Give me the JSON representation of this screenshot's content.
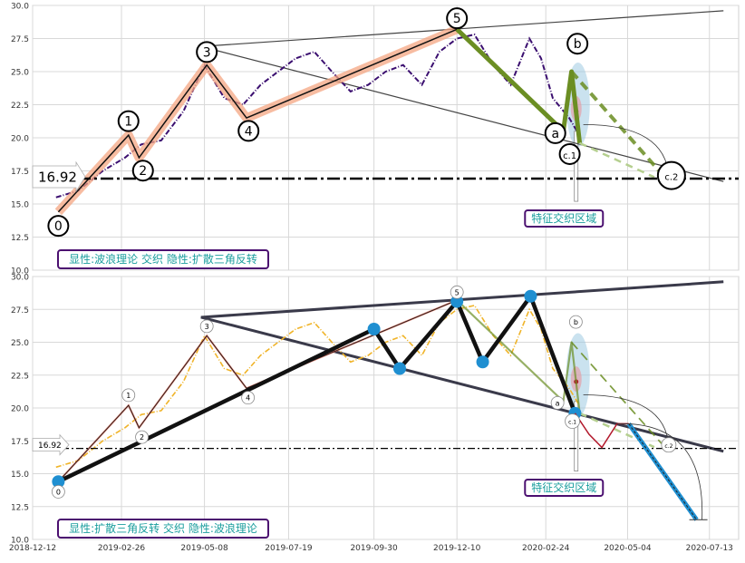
{
  "chart_data": [
    {
      "type": "line",
      "panel": "top",
      "annotation_text": "显性:波浪理论 交织 隐性:扩散三角反转",
      "zone_label": "特征交织区域",
      "ylim": [
        10.0,
        30.0
      ],
      "y_ticks": [
        "10.0",
        "12.5",
        "15.0",
        "17.5",
        "20.0",
        "22.5",
        "25.0",
        "27.5",
        "30.0"
      ],
      "hline": {
        "value": 16.92,
        "label": "16.92"
      },
      "price_series": {
        "color": "#3b0f70",
        "x": [
          "2019-01-01",
          "2019-01-20",
          "2019-02-10",
          "2019-03-01",
          "2019-03-15",
          "2019-04-01",
          "2019-04-20",
          "2019-05-08",
          "2019-05-25",
          "2019-06-10",
          "2019-06-25",
          "2019-07-10",
          "2019-07-25",
          "2019-08-10",
          "2019-08-25",
          "2019-09-10",
          "2019-09-25",
          "2019-10-10",
          "2019-10-25",
          "2019-11-10",
          "2019-11-25",
          "2019-12-10",
          "2019-12-25",
          "2020-01-10",
          "2020-01-25",
          "2020-02-10",
          "2020-02-20",
          "2020-03-01",
          "2020-03-15",
          "2020-03-23"
        ],
        "y": [
          15.5,
          16.0,
          17.5,
          18.5,
          19.5,
          19.8,
          22.0,
          25.5,
          23.0,
          22.5,
          24.0,
          25.0,
          26.0,
          26.5,
          25.0,
          23.5,
          24.0,
          25.0,
          25.5,
          24.0,
          26.5,
          27.5,
          27.8,
          25.5,
          24.0,
          27.5,
          26.0,
          23.0,
          21.5,
          20.3
        ]
      },
      "waves": [
        {
          "label": "0",
          "x": "2019-01-03",
          "y": 14.4
        },
        {
          "label": "1",
          "x": "2019-03-04",
          "y": 20.2
        },
        {
          "label": "2",
          "x": "2019-03-13",
          "y": 18.5
        },
        {
          "label": "3",
          "x": "2019-05-10",
          "y": 25.5
        },
        {
          "label": "4",
          "x": "2019-06-13",
          "y": 21.5
        },
        {
          "label": "5",
          "x": "2019-12-10",
          "y": 28.2
        },
        {
          "label": "a",
          "x": "2020-03-10",
          "y": 20.5
        },
        {
          "label": "b",
          "x": "2020-03-17",
          "y": 25.0
        },
        {
          "label": "c.1",
          "x": "2020-03-24",
          "y": 19.6
        },
        {
          "label": "c.2",
          "x": "2020-06-02",
          "y": 17.3
        }
      ],
      "triangle": {
        "upper": {
          "start": [
            "2019-05-05",
            26.9
          ],
          "end": [
            "2020-07-25",
            29.6
          ]
        },
        "lower": {
          "start": [
            "2019-05-05",
            26.9
          ],
          "end": [
            "2020-07-25",
            16.7
          ]
        }
      }
    },
    {
      "type": "line",
      "panel": "bottom",
      "annotation_text": "显性:扩散三角反转 交织 隐性:波浪理论",
      "zone_label": "特征交织区域",
      "ylim": [
        10.0,
        30.0
      ],
      "y_ticks": [
        "10.0",
        "12.5",
        "15.0",
        "17.5",
        "20.0",
        "22.5",
        "25.0",
        "27.5",
        "30.0"
      ],
      "x_ticks": [
        "2018-12-12",
        "2019-02-26",
        "2019-05-08",
        "2019-07-19",
        "2019-09-30",
        "2019-12-10",
        "2020-02-24",
        "2020-05-04",
        "2020-07-13"
      ],
      "hline": {
        "value": 16.92,
        "label": "16.92"
      },
      "price_series": {
        "color": "#f0b429",
        "x": [
          "2019-01-01",
          "2019-01-20",
          "2019-02-10",
          "2019-03-01",
          "2019-03-15",
          "2019-04-01",
          "2019-04-20",
          "2019-05-08",
          "2019-05-25",
          "2019-06-10",
          "2019-06-25",
          "2019-07-10",
          "2019-07-25",
          "2019-08-10",
          "2019-08-25",
          "2019-09-10",
          "2019-09-25",
          "2019-10-10",
          "2019-10-25",
          "2019-11-10",
          "2019-11-25",
          "2019-12-10",
          "2019-12-25",
          "2020-01-10",
          "2020-01-25",
          "2020-02-10",
          "2020-02-20",
          "2020-03-01",
          "2020-03-15",
          "2020-03-23"
        ],
        "y": [
          15.5,
          16.0,
          17.5,
          18.5,
          19.5,
          19.8,
          22.0,
          25.5,
          23.0,
          22.5,
          24.0,
          25.0,
          26.0,
          26.5,
          25.0,
          23.5,
          24.0,
          25.0,
          25.5,
          24.0,
          26.5,
          27.5,
          27.8,
          25.5,
          24.0,
          27.5,
          26.0,
          23.0,
          21.5,
          20.3
        ]
      },
      "waves": [
        {
          "label": "0",
          "x": "2019-01-03",
          "y": 14.4
        },
        {
          "label": "1",
          "x": "2019-03-04",
          "y": 20.2
        },
        {
          "label": "2",
          "x": "2019-03-13",
          "y": 18.5
        },
        {
          "label": "3",
          "x": "2019-05-10",
          "y": 25.5
        },
        {
          "label": "4",
          "x": "2019-06-13",
          "y": 21.5
        },
        {
          "label": "5",
          "x": "2019-12-10",
          "y": 28.2
        },
        {
          "label": "a",
          "x": "2020-03-10",
          "y": 20.5
        },
        {
          "label": "b",
          "x": "2020-03-17",
          "y": 25.0
        },
        {
          "label": "c.1",
          "x": "2020-03-24",
          "y": 19.6
        },
        {
          "label": "c.2",
          "x": "2020-06-02",
          "y": 17.3
        }
      ],
      "pivots": [
        {
          "x": "2019-01-03",
          "y": 14.4
        },
        {
          "x": "2019-09-30",
          "y": 26.0
        },
        {
          "x": "2019-10-22",
          "y": 23.0
        },
        {
          "x": "2019-12-10",
          "y": 28.1
        },
        {
          "x": "2020-01-01",
          "y": 23.5
        },
        {
          "x": "2020-02-11",
          "y": 28.5
        },
        {
          "x": "2020-03-20",
          "y": 19.6
        }
      ],
      "projection": {
        "x": [
          "2020-03-20",
          "2020-04-01",
          "2020-04-12",
          "2020-04-25",
          "2020-05-05",
          "2020-06-10",
          "2020-07-02"
        ],
        "y": [
          19.6,
          18.0,
          17.0,
          18.8,
          18.8,
          14.5,
          11.5
        ]
      },
      "triangle": {
        "upper": {
          "start": [
            "2019-05-05",
            26.9
          ],
          "end": [
            "2020-07-25",
            29.6
          ]
        },
        "lower": {
          "start": [
            "2019-05-05",
            26.9
          ],
          "end": [
            "2020-07-25",
            16.7
          ]
        }
      }
    }
  ]
}
